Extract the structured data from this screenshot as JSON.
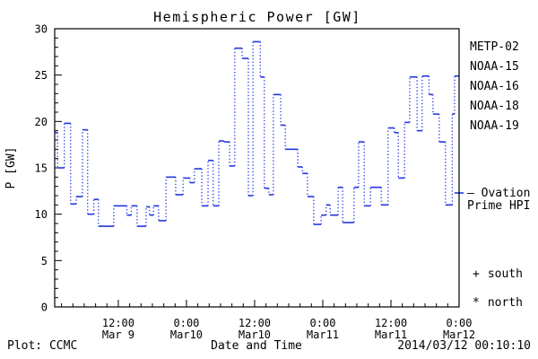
{
  "title": "Hemispheric Power [GW]",
  "footer": {
    "left": "Plot: CCMC",
    "center": "Date and Time",
    "right": "2014/03/12 00:10:10"
  },
  "legend": {
    "satellites": [
      {
        "label": "METP-02",
        "color": "#000000"
      },
      {
        "label": "NOAA-15",
        "color": "#2236e0"
      },
      {
        "label": "NOAA-16",
        "color": "#3aabee"
      },
      {
        "label": "NOAA-18",
        "color": "#5ade85"
      },
      {
        "label": "NOAA-19",
        "color": "#ff9d1e"
      }
    ],
    "ovation": {
      "line1": "— Ovation",
      "line2": "Prime HPI",
      "color": "#2236e0",
      "marker_value_gw": 12.3
    },
    "south_marker": {
      "symbol": "+",
      "label": "south"
    },
    "north_marker": {
      "symbol": "*",
      "label": "north"
    }
  },
  "chart_data": {
    "type": "line",
    "subtype": "step",
    "title": "Hemispheric Power [GW]",
    "xlabel": "Date and Time",
    "ylabel": "P [GW]",
    "ylim": [
      0,
      30
    ],
    "y_major_step": 5,
    "y_minor_step": 1,
    "xlim_hours": [
      0.8,
      72
    ],
    "x_minor_step_hours": 2,
    "x_major_ticks": [
      {
        "hour": 12,
        "line1": "12:00",
        "line2": "Mar 9"
      },
      {
        "hour": 24,
        "line1": "0:00",
        "line2": "Mar10"
      },
      {
        "hour": 36,
        "line1": "12:00",
        "line2": "Mar10"
      },
      {
        "hour": 48,
        "line1": "0:00",
        "line2": "Mar11"
      },
      {
        "hour": 60,
        "line1": "12:00",
        "line2": "Mar11"
      },
      {
        "hour": 72,
        "line1": "0:00",
        "line2": "Mar12"
      }
    ],
    "line_color": "#2236e0",
    "grid": false,
    "legend_position": "right",
    "steps_hour_gw": [
      [
        0.8,
        18.8
      ],
      [
        1.3,
        15.0
      ],
      [
        2.5,
        19.8
      ],
      [
        3.6,
        11.1
      ],
      [
        4.6,
        11.9
      ],
      [
        5.7,
        19.1
      ],
      [
        6.6,
        10.0
      ],
      [
        7.7,
        11.6
      ],
      [
        8.5,
        8.7
      ],
      [
        11.2,
        10.9
      ],
      [
        13.5,
        9.9
      ],
      [
        14.3,
        10.9
      ],
      [
        15.3,
        8.7
      ],
      [
        16.9,
        10.8
      ],
      [
        17.5,
        9.9
      ],
      [
        18.2,
        10.9
      ],
      [
        19.1,
        9.3
      ],
      [
        20.4,
        14.0
      ],
      [
        22.1,
        12.1
      ],
      [
        23.4,
        13.9
      ],
      [
        24.6,
        13.4
      ],
      [
        25.4,
        14.9
      ],
      [
        26.7,
        10.9
      ],
      [
        27.8,
        15.8
      ],
      [
        28.7,
        10.9
      ],
      [
        29.7,
        17.9
      ],
      [
        30.6,
        17.8
      ],
      [
        31.6,
        15.2
      ],
      [
        32.5,
        27.9
      ],
      [
        33.8,
        26.8
      ],
      [
        34.9,
        12.0
      ],
      [
        35.7,
        28.6
      ],
      [
        37.0,
        24.8
      ],
      [
        37.7,
        12.8
      ],
      [
        38.5,
        12.1
      ],
      [
        39.3,
        22.9
      ],
      [
        40.6,
        19.6
      ],
      [
        41.4,
        17.0
      ],
      [
        43.6,
        15.1
      ],
      [
        44.4,
        14.4
      ],
      [
        45.3,
        11.9
      ],
      [
        46.4,
        8.9
      ],
      [
        47.7,
        9.9
      ],
      [
        48.6,
        11.0
      ],
      [
        49.3,
        9.9
      ],
      [
        50.7,
        12.9
      ],
      [
        51.5,
        9.1
      ],
      [
        53.5,
        12.9
      ],
      [
        54.3,
        17.8
      ],
      [
        55.3,
        10.9
      ],
      [
        56.4,
        12.9
      ],
      [
        58.3,
        11.0
      ],
      [
        59.5,
        19.3
      ],
      [
        60.6,
        18.8
      ],
      [
        61.3,
        13.9
      ],
      [
        62.4,
        19.9
      ],
      [
        63.3,
        24.8
      ],
      [
        64.6,
        19.0
      ],
      [
        65.5,
        24.9
      ],
      [
        66.7,
        22.9
      ],
      [
        67.4,
        20.8
      ],
      [
        68.5,
        17.8
      ],
      [
        69.6,
        11.0
      ],
      [
        70.8,
        20.8
      ],
      [
        71.2,
        24.9
      ]
    ],
    "end_hour": 72
  }
}
